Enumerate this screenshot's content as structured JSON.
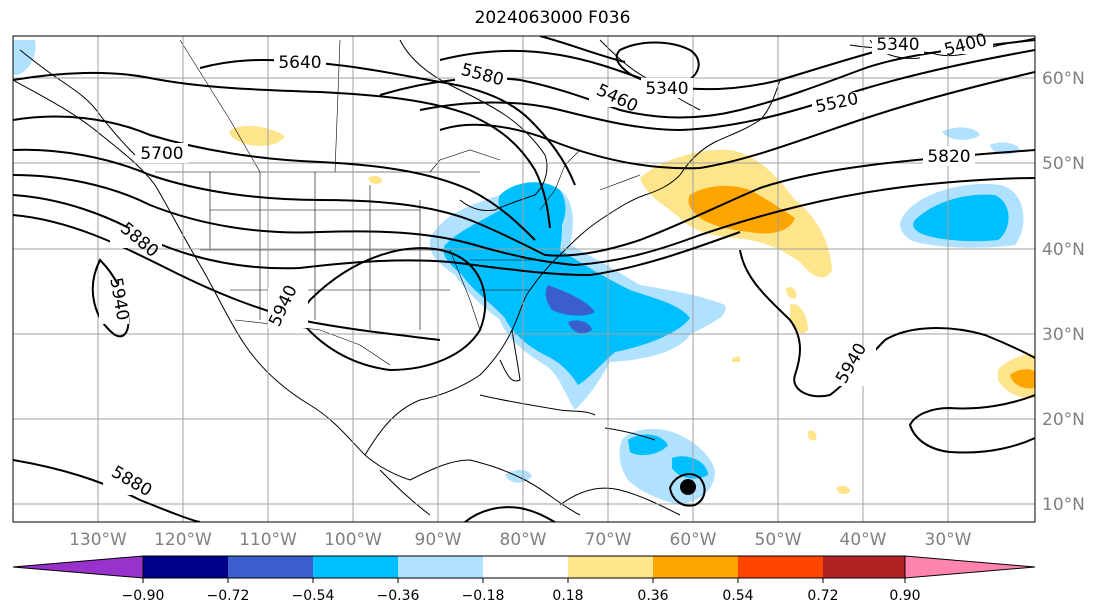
{
  "title": "2024063000 F036",
  "map": {
    "longitude_labels": [
      "130°W",
      "120°W",
      "110°W",
      "100°W",
      "90°W",
      "80°W",
      "70°W",
      "60°W",
      "50°W",
      "40°W",
      "30°W"
    ],
    "latitude_labels": [
      "60°N",
      "50°N",
      "40°N",
      "30°N",
      "20°N",
      "10°N"
    ],
    "contour_labels": [
      "5640",
      "5580",
      "5460",
      "5340",
      "5340",
      "5400",
      "5520",
      "5700",
      "5820",
      "5880",
      "5940",
      "5940",
      "5940",
      "5880"
    ],
    "colors": {
      "contour": "#000000",
      "grid": "#a0a0a0",
      "tick_label": "#808080",
      "coast": "#000000"
    }
  },
  "colorbar": {
    "tick_labels": [
      "−0.90",
      "−0.72",
      "−0.54",
      "−0.36",
      "−0.18",
      "0.18",
      "0.36",
      "0.54",
      "0.72",
      "0.90"
    ],
    "bins": [
      {
        "color": "#9932cc"
      },
      {
        "color": "#00008b"
      },
      {
        "color": "#3a5fcd"
      },
      {
        "color": "#00bfff"
      },
      {
        "color": "#b0e2ff"
      },
      {
        "color": "#ffffff"
      },
      {
        "color": "#fee58b"
      },
      {
        "color": "#ffa500"
      },
      {
        "color": "#ff4500"
      },
      {
        "color": "#b22222"
      },
      {
        "color": "#ff84b0"
      }
    ]
  }
}
